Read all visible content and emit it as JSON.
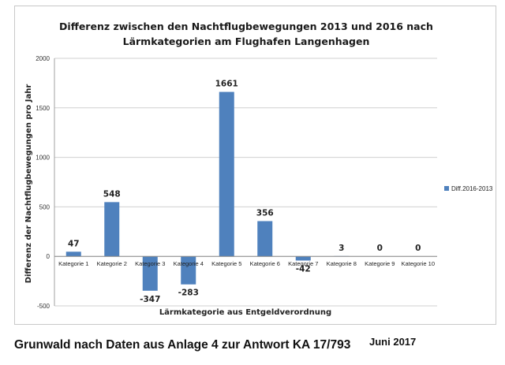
{
  "chart_data": {
    "type": "bar",
    "title_lines": [
      "Differenz zwischen den Nachtflugbewegungen 2013 und 2016 nach",
      "Lärmkategorien am Flughafen Langenhagen"
    ],
    "xlabel": "Lärmkategorie aus Entgeldverordnung",
    "ylabel": "Differenz der Nachtflugbewegungen pro Jahr",
    "ylim": [
      -500,
      2000
    ],
    "yticks": [
      -500,
      0,
      500,
      1000,
      1500,
      2000
    ],
    "grid": true,
    "legend_position": "right",
    "series": [
      {
        "name": "Diff.2016-2013",
        "color": "#4f81bd",
        "values": [
          47,
          548,
          -347,
          -283,
          1661,
          356,
          -42,
          3,
          0,
          0
        ]
      }
    ],
    "categories": [
      "Kategorie 1",
      "Kategorie 2",
      "Kategorie 3",
      "Kategorie 4",
      "Kategorie 5",
      "Kategorie 6",
      "Kategorie 7",
      "Kategorie 8",
      "Kategorie 9",
      "Kategorie 10"
    ]
  },
  "caption": {
    "source": "Grunwald nach Daten aus Anlage 4 zur Antwort KA 17/793",
    "date": "Juni 2017"
  }
}
